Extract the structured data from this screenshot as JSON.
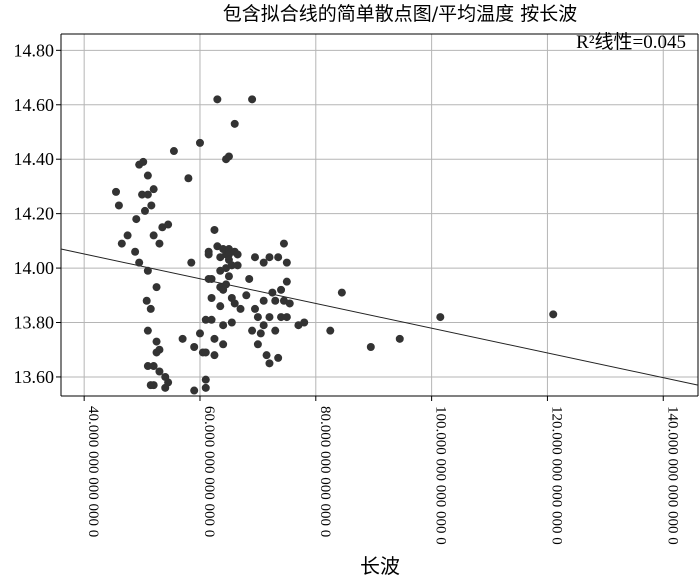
{
  "chart_data": {
    "type": "scatter",
    "title": "包含拟合线的简单散点图/平均温度 按长波",
    "xlabel": "长波",
    "ylabel": "",
    "fit_label": "R²线性=0.045",
    "xlim": [
      36000000000000,
      146000000000000
    ],
    "ylim": [
      13.53,
      14.86
    ],
    "x_ticks": [
      40000000000000,
      60000000000000,
      80000000000000,
      100000000000000,
      120000000000000,
      140000000000000
    ],
    "x_tick_labels": [
      "40.000 000 000 000 0",
      "60.000 000 000 000 0",
      "80.000 000 000 000 0",
      "100.000 000 000 000 0",
      "120.000 000 000 000 0",
      "140.000 000 000 000 0"
    ],
    "y_ticks": [
      13.6,
      13.8,
      14.0,
      14.2,
      14.4,
      14.6,
      14.8
    ],
    "y_tick_labels": [
      "13.60",
      "13.80",
      "14.00",
      "14.20",
      "14.40",
      "14.60",
      "14.80"
    ],
    "grid": true,
    "fit_line": [
      [
        36000000000000,
        14.07
      ],
      [
        146000000000000,
        13.57
      ]
    ],
    "points": [
      [
        45.5,
        14.28
      ],
      [
        46.0,
        14.23
      ],
      [
        47.5,
        14.12
      ],
      [
        46.5,
        14.09
      ],
      [
        48.8,
        14.06
      ],
      [
        49.0,
        14.18
      ],
      [
        49.5,
        14.38
      ],
      [
        50.2,
        14.39
      ],
      [
        50.5,
        14.21
      ],
      [
        51.0,
        14.27
      ],
      [
        51.6,
        14.23
      ],
      [
        52.0,
        14.29
      ],
      [
        50.0,
        14.27
      ],
      [
        51.0,
        14.34
      ],
      [
        52.0,
        14.12
      ],
      [
        53.0,
        14.09
      ],
      [
        53.5,
        14.15
      ],
      [
        54.5,
        14.16
      ],
      [
        55.5,
        14.43
      ],
      [
        49.5,
        14.02
      ],
      [
        51.0,
        13.99
      ],
      [
        50.8,
        13.88
      ],
      [
        51.5,
        13.85
      ],
      [
        52.5,
        13.93
      ],
      [
        51.0,
        13.77
      ],
      [
        52.5,
        13.73
      ],
      [
        53.0,
        13.7
      ],
      [
        52.5,
        13.69
      ],
      [
        51.0,
        13.64
      ],
      [
        52.0,
        13.64
      ],
      [
        51.5,
        13.57
      ],
      [
        52.0,
        13.57
      ],
      [
        53.0,
        13.62
      ],
      [
        54.0,
        13.6
      ],
      [
        54.5,
        13.58
      ],
      [
        54.0,
        13.56
      ],
      [
        57.0,
        13.74
      ],
      [
        58.0,
        14.33
      ],
      [
        58.5,
        14.02
      ],
      [
        59.0,
        13.55
      ],
      [
        59.0,
        13.71
      ],
      [
        60.0,
        14.46
      ],
      [
        60.5,
        13.69
      ],
      [
        60.0,
        13.76
      ],
      [
        61.0,
        13.81
      ],
      [
        61.0,
        13.69
      ],
      [
        61.0,
        13.59
      ],
      [
        61.0,
        13.56
      ],
      [
        61.5,
        13.96
      ],
      [
        61.5,
        14.06
      ],
      [
        61.5,
        14.05
      ],
      [
        62.0,
        13.89
      ],
      [
        62.0,
        13.81
      ],
      [
        62.0,
        13.96
      ],
      [
        62.5,
        13.74
      ],
      [
        62.5,
        13.68
      ],
      [
        62.5,
        14.14
      ],
      [
        63.0,
        14.08
      ],
      [
        63.0,
        14.62
      ],
      [
        63.5,
        14.04
      ],
      [
        63.5,
        13.99
      ],
      [
        63.5,
        13.93
      ],
      [
        63.5,
        13.86
      ],
      [
        64.0,
        14.07
      ],
      [
        64.0,
        13.92
      ],
      [
        64.0,
        13.79
      ],
      [
        64.0,
        13.72
      ],
      [
        64.5,
        14.4
      ],
      [
        64.5,
        14.05
      ],
      [
        64.5,
        14.0
      ],
      [
        64.5,
        13.94
      ],
      [
        65.0,
        14.41
      ],
      [
        65.0,
        14.07
      ],
      [
        65.0,
        14.05
      ],
      [
        65.0,
        14.03
      ],
      [
        65.0,
        13.97
      ],
      [
        65.5,
        14.01
      ],
      [
        65.5,
        13.89
      ],
      [
        65.5,
        13.8
      ],
      [
        66.0,
        14.53
      ],
      [
        66.0,
        14.06
      ],
      [
        66.0,
        13.87
      ],
      [
        66.5,
        14.05
      ],
      [
        66.5,
        14.01
      ],
      [
        67.0,
        13.85
      ],
      [
        68.0,
        13.9
      ],
      [
        68.5,
        13.96
      ],
      [
        69.0,
        14.62
      ],
      [
        69.0,
        13.77
      ],
      [
        69.5,
        14.04
      ],
      [
        69.5,
        13.85
      ],
      [
        70.0,
        13.72
      ],
      [
        70.0,
        13.82
      ],
      [
        70.5,
        13.76
      ],
      [
        71.0,
        13.88
      ],
      [
        71.0,
        13.79
      ],
      [
        71.0,
        14.02
      ],
      [
        71.5,
        13.68
      ],
      [
        72.0,
        14.04
      ],
      [
        72.0,
        13.82
      ],
      [
        72.0,
        13.65
      ],
      [
        72.5,
        13.91
      ],
      [
        73.0,
        13.88
      ],
      [
        73.0,
        13.77
      ],
      [
        73.5,
        13.67
      ],
      [
        73.5,
        14.04
      ],
      [
        74.0,
        13.92
      ],
      [
        74.0,
        13.82
      ],
      [
        74.5,
        14.09
      ],
      [
        74.5,
        13.88
      ],
      [
        75.0,
        13.82
      ],
      [
        75.0,
        14.02
      ],
      [
        75.0,
        13.95
      ],
      [
        75.5,
        13.87
      ],
      [
        77.0,
        13.79
      ],
      [
        78.0,
        13.8
      ],
      [
        82.5,
        13.77
      ],
      [
        84.5,
        13.91
      ],
      [
        89.5,
        13.71
      ],
      [
        94.5,
        13.74
      ],
      [
        101.5,
        13.82
      ],
      [
        121.0,
        13.83
      ]
    ]
  }
}
